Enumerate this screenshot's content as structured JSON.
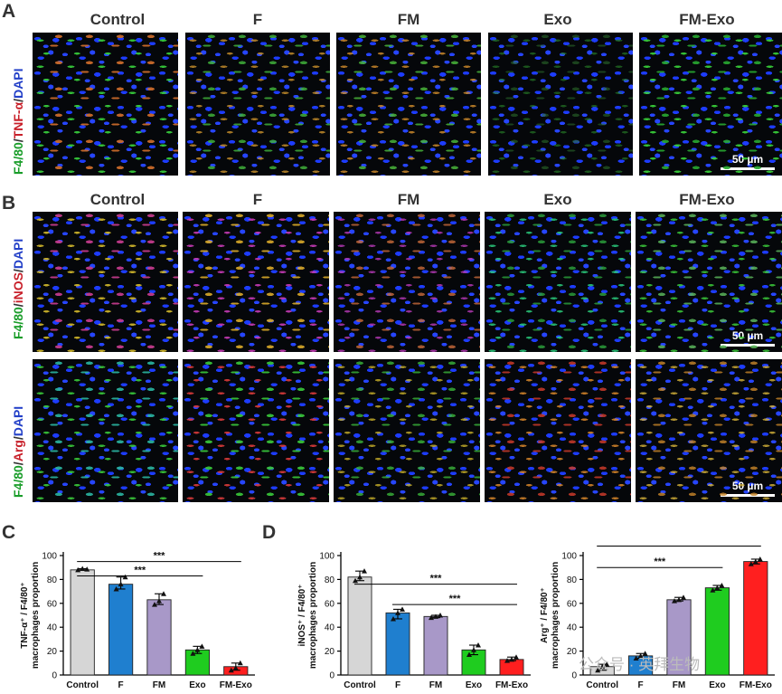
{
  "panels": {
    "a": "A",
    "b": "B",
    "c": "C",
    "d": "D"
  },
  "groups": [
    "Control",
    "F",
    "FM",
    "Exo",
    "FM-Exo"
  ],
  "row_labels": {
    "tnf": [
      "F4/80",
      "/",
      "TNF-α",
      "/",
      "DAPI"
    ],
    "inos": [
      "F4/80",
      "/",
      "iNOS",
      "/",
      "DAPI"
    ],
    "arg": [
      "F4/80",
      "/",
      "Arg",
      "/",
      "DAPI"
    ]
  },
  "scale_bar": "50 µm",
  "significance": "***",
  "watermark": "公众号 · 英拜生物",
  "colors": {
    "control": "#d6d6d6",
    "f": "#1f7fcf",
    "fm": "#a898c8",
    "exo": "#1fcc1f",
    "fmexo": "#ff1f1f"
  },
  "chart_data": [
    {
      "type": "bar",
      "categories": [
        "Control",
        "F",
        "FM",
        "Exo",
        "FM-Exo"
      ],
      "values": [
        88,
        76,
        63,
        21,
        7
      ],
      "points": [
        [
          88,
          89,
          88.5
        ],
        [
          72,
          76,
          82
        ],
        [
          59,
          62,
          68
        ],
        [
          18,
          21,
          24
        ],
        [
          4,
          6,
          10
        ]
      ],
      "ylabel_lines": [
        "TNF-α⁺ / F4/80⁺",
        "macrophages proportion"
      ],
      "yticks": [
        0,
        20,
        40,
        60,
        80,
        100
      ],
      "ylim": [
        0,
        100
      ],
      "brackets": [
        {
          "from": 0,
          "to": 4,
          "y": 95,
          "label": "***"
        },
        {
          "from": 0,
          "to": 3,
          "y": 83,
          "label": "***"
        }
      ]
    },
    {
      "type": "bar",
      "categories": [
        "Control",
        "F",
        "FM",
        "Exo",
        "FM-Exo"
      ],
      "values": [
        82,
        52,
        49,
        21,
        13
      ],
      "points": [
        [
          79,
          82,
          87
        ],
        [
          47,
          52,
          55
        ],
        [
          48,
          49,
          50
        ],
        [
          17,
          21,
          25
        ],
        [
          12,
          13,
          15
        ]
      ],
      "ylabel_lines": [
        "iNOS⁺ / F4/80⁺",
        "macrophages proportion"
      ],
      "yticks": [
        0,
        20,
        40,
        60,
        80,
        100
      ],
      "ylim": [
        0,
        100
      ],
      "brackets": [
        {
          "from": 0,
          "to": 4,
          "y": 76,
          "label": "***"
        },
        {
          "from": 1,
          "to": 4,
          "y": 59,
          "label": "***"
        }
      ]
    },
    {
      "type": "bar",
      "categories": [
        "Control",
        "F",
        "FM",
        "Exo",
        "FM-Exo"
      ],
      "values": [
        7,
        16,
        63,
        73,
        95
      ],
      "points": [
        [
          4,
          7,
          9
        ],
        [
          14,
          16,
          18
        ],
        [
          62,
          63,
          65
        ],
        [
          71,
          73,
          75
        ],
        [
          93,
          95,
          97
        ]
      ],
      "ylabel_lines": [
        "Arg⁺ / F4/80⁺",
        "macrophages proportion"
      ],
      "yticks": [
        0,
        20,
        40,
        60,
        80,
        100
      ],
      "ylim": [
        0,
        100
      ],
      "brackets": [
        {
          "from": 0,
          "to": 4,
          "y": 108,
          "label": "***"
        },
        {
          "from": 0,
          "to": 3,
          "y": 90,
          "label": "***"
        }
      ]
    }
  ]
}
